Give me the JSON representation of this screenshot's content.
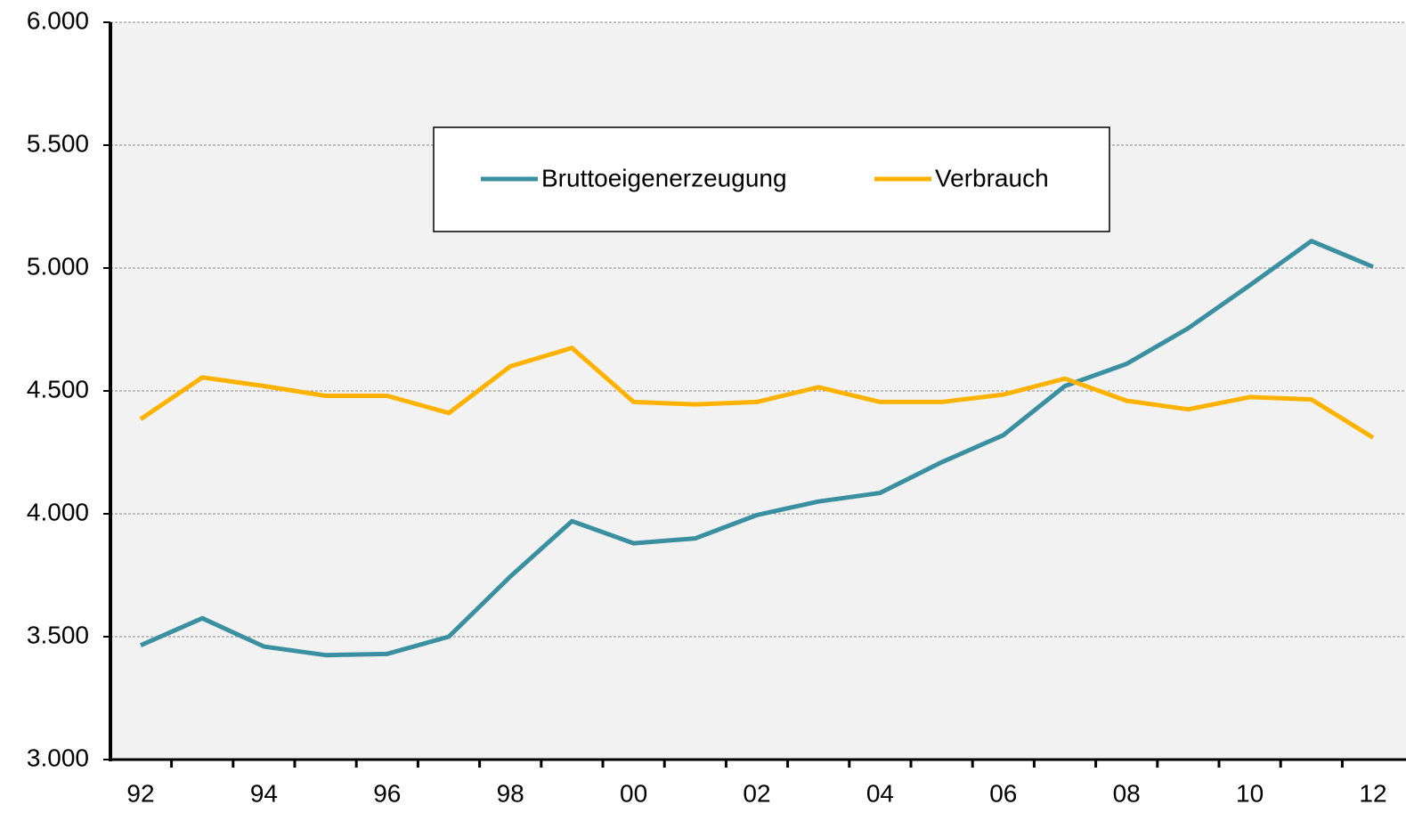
{
  "chart_data": {
    "type": "line",
    "categories": [
      "92",
      null,
      "94",
      null,
      "96",
      null,
      "98",
      null,
      "00",
      null,
      "02",
      null,
      "04",
      null,
      "06",
      null,
      "08",
      null,
      "10",
      null,
      "12"
    ],
    "series": [
      {
        "name": "Bruttoeigenerzeugung",
        "color": "#3a8fa0",
        "values": [
          3465,
          3575,
          3460,
          3425,
          3430,
          3500,
          3745,
          3970,
          3880,
          3900,
          3995,
          4050,
          4085,
          4210,
          4320,
          4520,
          4610,
          4755,
          4930,
          5110,
          5005
        ]
      },
      {
        "name": "Verbrauch",
        "color": "#ffb300",
        "values": [
          4385,
          4555,
          4520,
          4480,
          4480,
          4410,
          4600,
          4675,
          4455,
          4445,
          4455,
          4515,
          4455,
          4455,
          4485,
          4550,
          4460,
          4425,
          4475,
          4465,
          4310
        ]
      }
    ],
    "ylim": [
      3000,
      6000
    ],
    "yticks": [
      {
        "value": 3000,
        "label": "3.000"
      },
      {
        "value": 3500,
        "label": "3.500"
      },
      {
        "value": 4000,
        "label": "4.000"
      },
      {
        "value": 4500,
        "label": "4.500"
      },
      {
        "value": 5000,
        "label": "5.000"
      },
      {
        "value": 5500,
        "label": "5.500"
      },
      {
        "value": 6000,
        "label": "6.000"
      }
    ],
    "grid": true,
    "legend": "top"
  }
}
